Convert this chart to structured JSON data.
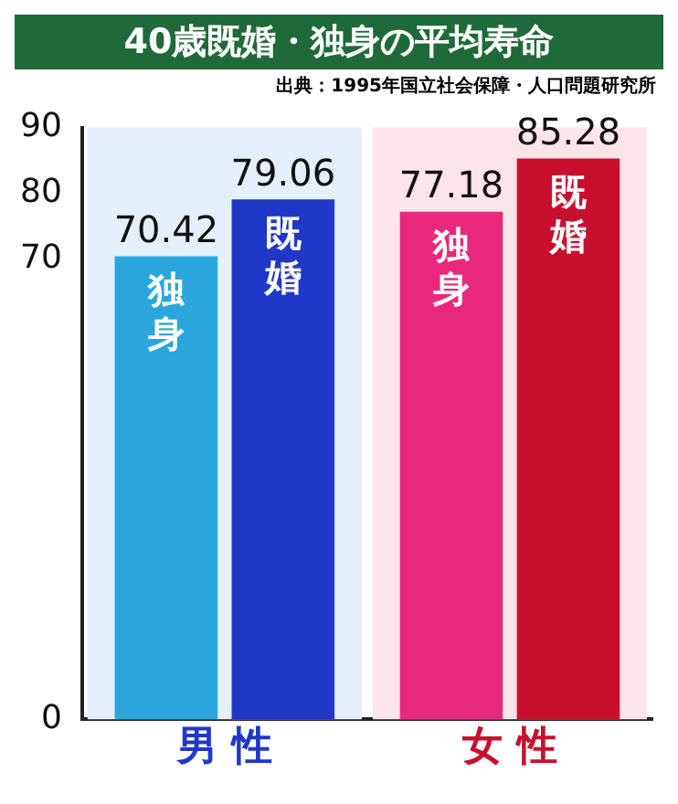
{
  "chart_data": {
    "type": "bar",
    "title": "40歳既婚・独身の平均寿命",
    "subtitle": "出典：1995年国立社会保障・人口問題研究所",
    "categories": [
      "男 性",
      "女 性"
    ],
    "series": [
      {
        "name": "独身",
        "colors": [
          "#2aa6dc",
          "#e8287c"
        ],
        "values": [
          70.42,
          77.18
        ]
      },
      {
        "name": "既婚",
        "colors": [
          "#2038c8",
          "#c8102e"
        ],
        "values": [
          79.06,
          85.28
        ]
      }
    ],
    "ylim": [
      0,
      90
    ],
    "yticks": [
      0,
      70,
      80,
      90
    ],
    "bands": [
      {
        "axis": "x",
        "from": "男 性",
        "to": "男 性",
        "color": "#e4effa"
      },
      {
        "axis": "x",
        "from": "女 性",
        "to": "女 性",
        "color": "#fbe4ea"
      }
    ],
    "data_labels": true,
    "grid": false,
    "legend": false
  }
}
